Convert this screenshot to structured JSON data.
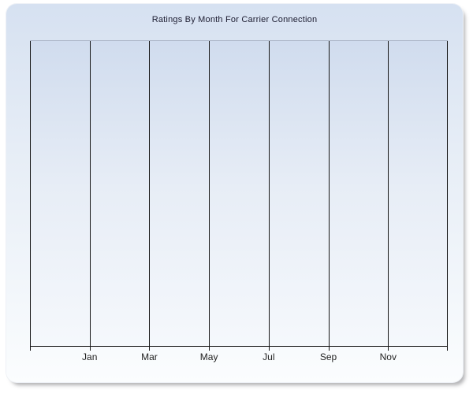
{
  "title": "Ratings By Month For Carrier Connection",
  "chart_data": {
    "type": "line",
    "title": "Ratings By Month For Carrier Connection",
    "x_tick_labels": [
      "Jan",
      "Mar",
      "May",
      "Jul",
      "Sep",
      "Nov"
    ],
    "xlabel": "",
    "ylabel": "",
    "series": [],
    "plot_empty": true,
    "grid": "vertical gridlines only; gridlines also at left and right plot edges; no horizontal gridlines; no y-axis tick labels",
    "legend": "none"
  },
  "colors": {
    "panel_gradient_top": "#d6e1f1",
    "panel_gradient_bottom": "#fbfdfe",
    "plot_gradient_top": "#d0dcee",
    "plot_gradient_bottom": "#f5f8fc",
    "gridline": "#161616",
    "axis_line": "#161616",
    "plot_top_border": "#aeb9ca",
    "title_text": "#1c1c30",
    "tick_label_text": "#1f1f1f",
    "page_background": "#ffffff"
  }
}
